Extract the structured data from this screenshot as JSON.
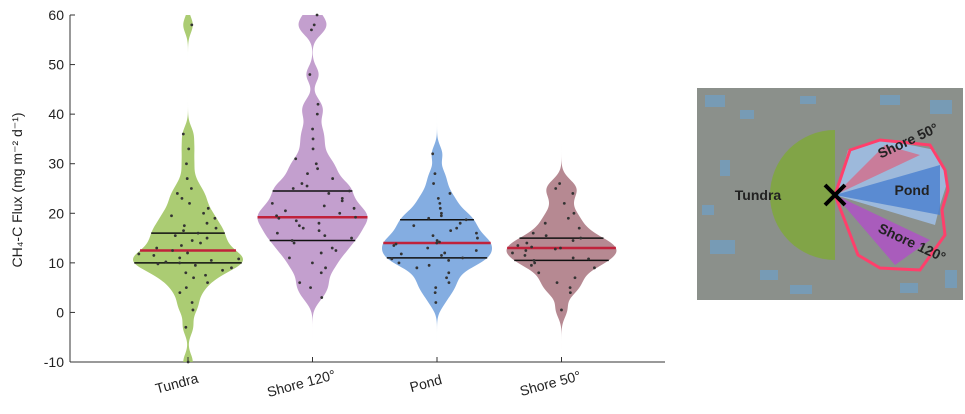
{
  "chart_data": {
    "type": "violin",
    "y_label": "CH₄-C Flux (mg m⁻² d⁻¹)",
    "categories": [
      "Tundra",
      "Shore 120°",
      "Pond",
      "Shore 50°"
    ],
    "ylim": [
      -10,
      60
    ],
    "yticks": [
      -10,
      0,
      10,
      20,
      30,
      40,
      50,
      60
    ],
    "median_color": "#c0223b",
    "quartile_color": "#111111",
    "point_color": "#333333",
    "series": [
      {
        "name": "Tundra",
        "color": "#9cc35a",
        "q1": 10,
        "median": 12.5,
        "q3": 16,
        "values": [
          58,
          36,
          33,
          30,
          27,
          25,
          24,
          23,
          22,
          21,
          20,
          19.5,
          19,
          18,
          17.5,
          17,
          16.5,
          16,
          15.5,
          15,
          14.5,
          14,
          13.5,
          13,
          12.5,
          12,
          11.8,
          11.5,
          11,
          10.8,
          10.5,
          10.2,
          10,
          9.8,
          9.5,
          9,
          8.5,
          8,
          7.5,
          7,
          6,
          5,
          4,
          2,
          0.5,
          -3,
          -10
        ]
      },
      {
        "name": "Shore 120°",
        "color": "#b88ec6",
        "q1": 14.5,
        "median": 19.2,
        "q3": 24.5,
        "values": [
          60,
          58,
          57,
          48,
          42,
          40,
          37,
          35,
          33,
          31,
          30,
          29,
          28,
          27,
          26,
          25.5,
          25,
          24.5,
          24,
          23,
          22.5,
          22,
          21.5,
          21,
          20.5,
          20,
          19.5,
          19.2,
          19,
          18.5,
          18,
          17.5,
          17,
          16.5,
          16,
          15.5,
          15,
          14.5,
          14,
          13,
          12.5,
          12,
          11,
          10,
          9,
          8,
          6,
          5,
          3
        ]
      },
      {
        "name": "Pond",
        "color": "#6f9fdc",
        "q1": 11,
        "median": 14,
        "q3": 18.7,
        "values": [
          32,
          28,
          26,
          24,
          23,
          22,
          21,
          20,
          19.5,
          19,
          18.7,
          18,
          17.5,
          17,
          16.5,
          16,
          15.5,
          15,
          14.5,
          14.2,
          14,
          13.8,
          13.5,
          13,
          12.5,
          12,
          11.8,
          11.5,
          11,
          10.8,
          10.5,
          10,
          9.5,
          9,
          8,
          7,
          6,
          5,
          4,
          2
        ]
      },
      {
        "name": "Shore 50°",
        "color": "#a9747f",
        "q1": 10.5,
        "median": 13,
        "q3": 15,
        "values": [
          26,
          25,
          24,
          22,
          20,
          19,
          18,
          17,
          16,
          15.5,
          15,
          14.5,
          14,
          13.5,
          13.2,
          13,
          12.8,
          12.5,
          12,
          11.5,
          11,
          10.8,
          10.5,
          10,
          9.5,
          9,
          8,
          7,
          6,
          5,
          4,
          0.5
        ]
      }
    ]
  },
  "inset": {
    "labels": [
      "Tundra",
      "Pond",
      "Shore 50°",
      "Shore 120°"
    ]
  }
}
